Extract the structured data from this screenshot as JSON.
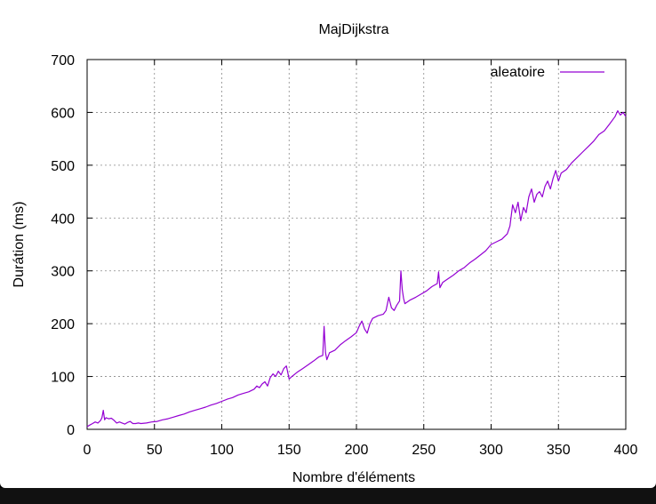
{
  "chart_data": {
    "type": "line",
    "title": "MajDijkstra",
    "xlabel": "Nombre d'éléments",
    "ylabel": "Durátion (ms)",
    "xlim": [
      0,
      400
    ],
    "ylim": [
      0,
      700
    ],
    "xticks": [
      "0",
      "50",
      "100",
      "150",
      "200",
      "250",
      "300",
      "350",
      "400"
    ],
    "yticks": [
      "0",
      "100",
      "200",
      "300",
      "400",
      "500",
      "600",
      "700"
    ],
    "grid": true,
    "legend_position": "top-right",
    "series": [
      {
        "name": "aleatoire",
        "color": "#9400d3",
        "x": [
          0,
          2,
          4,
          6,
          8,
          10,
          11,
          12,
          13,
          14,
          16,
          18,
          20,
          22,
          24,
          26,
          28,
          30,
          32,
          34,
          36,
          38,
          40,
          44,
          48,
          52,
          56,
          60,
          64,
          68,
          72,
          76,
          80,
          84,
          88,
          92,
          96,
          100,
          104,
          108,
          112,
          116,
          120,
          124,
          126,
          128,
          130,
          132,
          134,
          136,
          138,
          140,
          142,
          144,
          146,
          148,
          150,
          152,
          156,
          160,
          164,
          168,
          172,
          175,
          176,
          177,
          178,
          180,
          184,
          188,
          192,
          196,
          200,
          202,
          204,
          206,
          208,
          210,
          212,
          216,
          220,
          222,
          224,
          225,
          226,
          228,
          230,
          232,
          233,
          234,
          235,
          236,
          240,
          244,
          248,
          252,
          256,
          260,
          261,
          262,
          264,
          268,
          272,
          276,
          280,
          284,
          288,
          292,
          296,
          300,
          304,
          308,
          312,
          314,
          316,
          318,
          320,
          322,
          324,
          326,
          328,
          330,
          332,
          334,
          336,
          338,
          340,
          342,
          344,
          346,
          348,
          350,
          352,
          356,
          360,
          364,
          368,
          372,
          376,
          380,
          384,
          388,
          392,
          394,
          396,
          398,
          400
        ],
        "y": [
          5,
          8,
          11,
          14,
          12,
          17,
          22,
          36,
          18,
          22,
          20,
          21,
          17,
          12,
          14,
          12,
          10,
          13,
          15,
          11,
          11,
          12,
          11,
          12,
          14,
          15,
          18,
          20,
          23,
          26,
          29,
          33,
          36,
          39,
          42,
          46,
          49,
          53,
          57,
          60,
          65,
          68,
          71,
          76,
          82,
          79,
          86,
          90,
          82,
          98,
          105,
          100,
          110,
          103,
          115,
          120,
          95,
          100,
          108,
          115,
          122,
          129,
          137,
          140,
          195,
          145,
          132,
          145,
          150,
          160,
          168,
          175,
          183,
          195,
          205,
          190,
          182,
          200,
          210,
          215,
          218,
          225,
          250,
          240,
          230,
          225,
          235,
          243,
          300,
          265,
          248,
          238,
          245,
          250,
          256,
          262,
          270,
          276,
          298,
          268,
          278,
          285,
          292,
          300,
          306,
          315,
          322,
          330,
          338,
          350,
          355,
          360,
          370,
          385,
          425,
          410,
          430,
          395,
          420,
          410,
          440,
          455,
          430,
          445,
          450,
          440,
          460,
          470,
          455,
          475,
          490,
          470,
          485,
          492,
          505,
          515,
          525,
          535,
          545,
          558,
          565,
          578,
          592,
          603,
          595,
          600,
          592
        ]
      }
    ]
  }
}
